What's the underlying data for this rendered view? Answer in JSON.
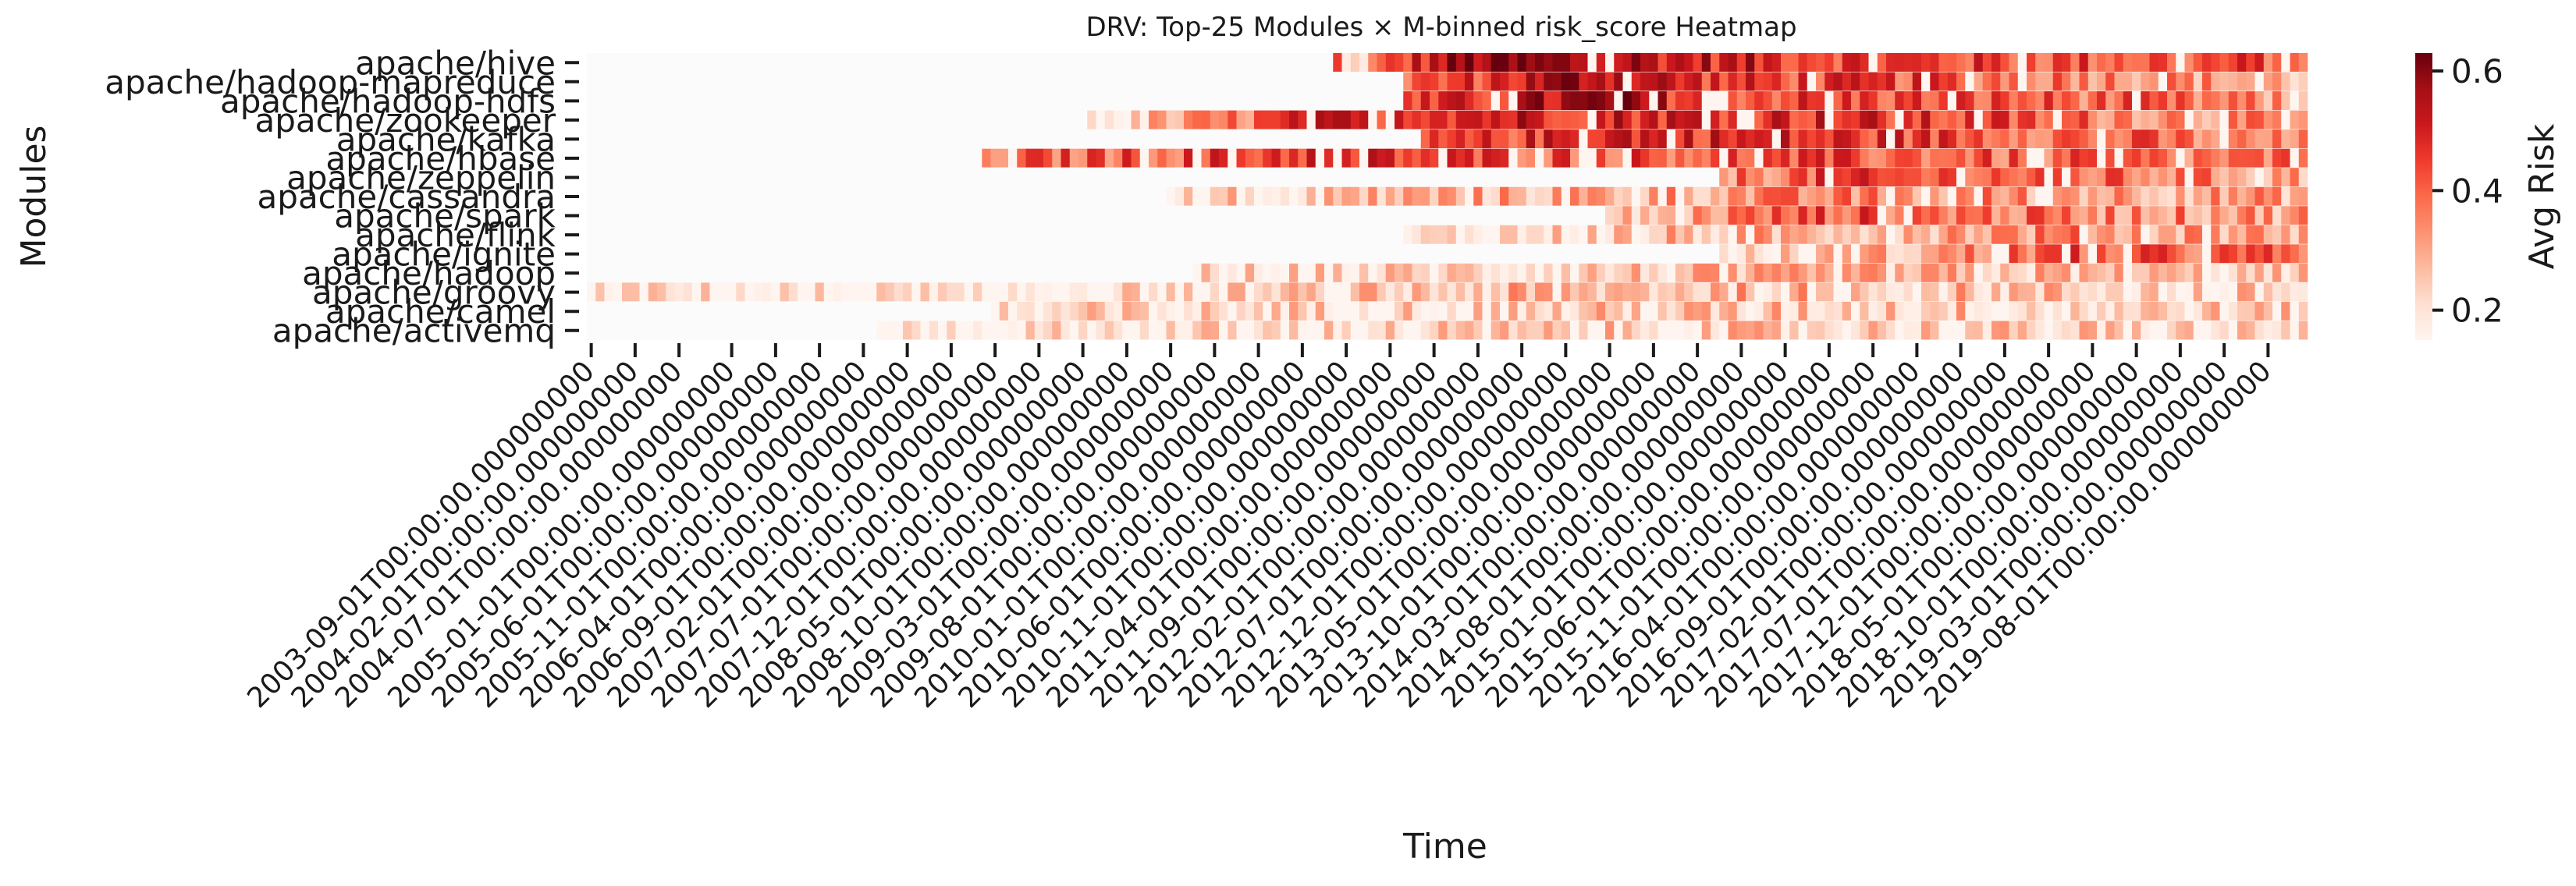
{
  "chart_data": {
    "type": "heatmap",
    "title": "DRV: Top-25 Modules × M-binned risk_score Heatmap",
    "xlabel": "Time",
    "ylabel": "Modules",
    "colorbar": {
      "label": "Avg Risk",
      "ticks": [
        0.2,
        0.4,
        0.6
      ],
      "range": [
        0.15,
        0.63
      ],
      "colormap": "Reds"
    },
    "rows": [
      "apache/hive",
      "apache/hadoop-mapreduce",
      "apache/hadoop-hdfs",
      "apache/zookeeper",
      "apache/kafka",
      "apache/hbase",
      "apache/zeppelin",
      "apache/cassandra",
      "apache/spark",
      "apache/flink",
      "apache/ignite",
      "apache/hadoop",
      "apache/groovy",
      "apache/camel",
      "apache/activemq"
    ],
    "x_start": "2003-09",
    "x_end": "2019-12",
    "x_tick_labels": [
      "2003-09-01T00:00:00.000000000",
      "2004-02-01T00:00:00.000000000",
      "2004-07-01T00:00:00.000000000",
      "2005-01-01T00:00:00.000000000",
      "2005-06-01T00:00:00.000000000",
      "2005-11-01T00:00:00.000000000",
      "2006-04-01T00:00:00.000000000",
      "2006-09-01T00:00:00.000000000",
      "2007-02-01T00:00:00.000000000",
      "2007-07-01T00:00:00.000000000",
      "2007-12-01T00:00:00.000000000",
      "2008-05-01T00:00:00.000000000",
      "2008-10-01T00:00:00.000000000",
      "2009-03-01T00:00:00.000000000",
      "2009-08-01T00:00:00.000000000",
      "2010-01-01T00:00:00.000000000",
      "2010-06-01T00:00:00.000000000",
      "2010-11-01T00:00:00.000000000",
      "2011-04-01T00:00:00.000000000",
      "2011-09-01T00:00:00.000000000",
      "2012-02-01T00:00:00.000000000",
      "2012-07-01T00:00:00.000000000",
      "2012-12-01T00:00:00.000000000",
      "2013-05-01T00:00:00.000000000",
      "2013-10-01T00:00:00.000000000",
      "2014-03-01T00:00:00.000000000",
      "2014-08-01T00:00:00.000000000",
      "2015-01-01T00:00:00.000000000",
      "2015-06-01T00:00:00.000000000",
      "2015-11-01T00:00:00.000000000",
      "2016-04-01T00:00:00.000000000",
      "2016-09-01T00:00:00.000000000",
      "2017-02-01T00:00:00.000000000",
      "2017-07-01T00:00:00.000000000",
      "2017-12-01T00:00:00.000000000",
      "2018-05-01T00:00:00.000000000",
      "2018-10-01T00:00:00.000000000",
      "2019-03-01T00:00:00.000000000",
      "2019-08-01T00:00:00.000000000"
    ],
    "series": [
      {
        "row": "apache/hive",
        "start": "2010-10",
        "segments": [
          [
            "2010-10",
            0.42
          ],
          [
            "2010-11",
            0.15
          ],
          [
            "2011-04",
            0.4
          ],
          [
            "2011-07",
            0.48
          ],
          [
            "2012-01",
            0.58
          ],
          [
            "2013-06",
            0.55
          ],
          [
            "2014-06",
            0.5
          ],
          [
            "2016-01",
            0.45
          ],
          [
            "2017-06",
            0.42
          ],
          [
            "2019-12",
            0.42
          ]
        ]
      },
      {
        "row": "apache/hadoop-mapreduce",
        "start": "2011-06",
        "segments": [
          [
            "2011-06",
            0.38
          ],
          [
            "2012-06",
            0.5
          ],
          [
            "2013-03",
            0.58
          ],
          [
            "2014-06",
            0.45
          ],
          [
            "2016-06",
            0.42
          ],
          [
            "2018-06",
            0.35
          ],
          [
            "2019-12",
            0.28
          ]
        ]
      },
      {
        "row": "apache/hadoop-hdfs",
        "start": "2011-06",
        "segments": [
          [
            "2011-06",
            0.4
          ],
          [
            "2012-06",
            0.5
          ],
          [
            "2013-03",
            0.56
          ],
          [
            "2014-06",
            0.45
          ],
          [
            "2016-06",
            0.42
          ],
          [
            "2018-06",
            0.38
          ],
          [
            "2019-12",
            0.3
          ]
        ]
      },
      {
        "row": "apache/zookeeper",
        "start": "2008-06",
        "segments": [
          [
            "2008-06",
            0.2
          ],
          [
            "2009-06",
            0.3
          ],
          [
            "2010-06",
            0.45
          ],
          [
            "2011-06",
            0.52
          ],
          [
            "2013-06",
            0.5
          ],
          [
            "2015-06",
            0.48
          ],
          [
            "2017-06",
            0.4
          ],
          [
            "2019-12",
            0.3
          ]
        ]
      },
      {
        "row": "apache/kafka",
        "start": "2011-08",
        "segments": [
          [
            "2011-08",
            0.38
          ],
          [
            "2012-06",
            0.45
          ],
          [
            "2013-06",
            0.52
          ],
          [
            "2014-06",
            0.48
          ],
          [
            "2016-06",
            0.44
          ],
          [
            "2018-06",
            0.38
          ],
          [
            "2019-12",
            0.3
          ]
        ]
      },
      {
        "row": "apache/hbase",
        "start": "2007-06",
        "segments": [
          [
            "2007-06",
            0.38
          ],
          [
            "2009-06",
            0.42
          ],
          [
            "2010-06",
            0.48
          ],
          [
            "2012-06",
            0.42
          ],
          [
            "2014-06",
            0.42
          ],
          [
            "2016-06",
            0.4
          ],
          [
            "2019-12",
            0.35
          ]
        ]
      },
      {
        "row": "apache/zeppelin",
        "start": "2014-06",
        "segments": [
          [
            "2014-06",
            0.35
          ],
          [
            "2015-06",
            0.42
          ],
          [
            "2017-06",
            0.4
          ],
          [
            "2019-12",
            0.3
          ]
        ]
      },
      {
        "row": "apache/cassandra",
        "start": "2009-03",
        "segments": [
          [
            "2009-03",
            0.22
          ],
          [
            "2011-06",
            0.28
          ],
          [
            "2013-06",
            0.3
          ],
          [
            "2015-06",
            0.34
          ],
          [
            "2017-06",
            0.33
          ],
          [
            "2019-12",
            0.3
          ]
        ]
      },
      {
        "row": "apache/spark",
        "start": "2013-05",
        "segments": [
          [
            "2013-05",
            0.22
          ],
          [
            "2014-06",
            0.35
          ],
          [
            "2015-06",
            0.42
          ],
          [
            "2017-06",
            0.36
          ],
          [
            "2019-12",
            0.32
          ]
        ]
      },
      {
        "row": "apache/flink",
        "start": "2011-06",
        "segments": [
          [
            "2011-06",
            0.18
          ],
          [
            "2013-06",
            0.24
          ],
          [
            "2015-06",
            0.3
          ],
          [
            "2017-06",
            0.34
          ],
          [
            "2019-12",
            0.3
          ]
        ]
      },
      {
        "row": "apache/ignite",
        "start": "2014-06",
        "segments": [
          [
            "2014-06",
            0.18
          ],
          [
            "2016-06",
            0.3
          ],
          [
            "2017-06",
            0.4
          ],
          [
            "2019-12",
            0.38
          ]
        ]
      },
      {
        "row": "apache/hadoop",
        "start": "2009-06",
        "segments": [
          [
            "2009-06",
            0.2
          ],
          [
            "2011-06",
            0.22
          ],
          [
            "2013-06",
            0.24
          ],
          [
            "2015-06",
            0.26
          ],
          [
            "2017-06",
            0.26
          ],
          [
            "2019-12",
            0.22
          ]
        ]
      },
      {
        "row": "apache/groovy",
        "start": "2003-09",
        "segments": [
          [
            "2003-09",
            0.19
          ],
          [
            "2006-06",
            0.17
          ],
          [
            "2009-06",
            0.2
          ],
          [
            "2012-06",
            0.26
          ],
          [
            "2015-06",
            0.28
          ],
          [
            "2017-06",
            0.25
          ],
          [
            "2019-12",
            0.22
          ]
        ]
      },
      {
        "row": "apache/camel",
        "start": "2007-07",
        "segments": [
          [
            "2007-07",
            0.2
          ],
          [
            "2010-06",
            0.22
          ],
          [
            "2013-06",
            0.24
          ],
          [
            "2016-06",
            0.25
          ],
          [
            "2019-12",
            0.22
          ]
        ]
      },
      {
        "row": "apache/activemq",
        "start": "2006-06",
        "segments": [
          [
            "2006-06",
            0.17
          ],
          [
            "2009-06",
            0.2
          ],
          [
            "2012-06",
            0.22
          ],
          [
            "2015-06",
            0.24
          ],
          [
            "2019-12",
            0.21
          ]
        ]
      }
    ]
  }
}
